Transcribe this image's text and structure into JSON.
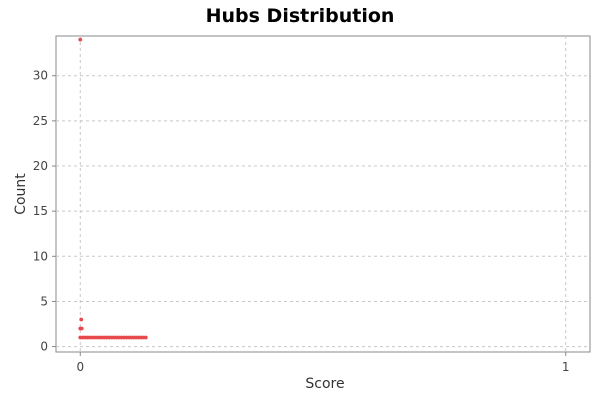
{
  "chart_data": {
    "type": "scatter",
    "title": "Hubs Distribution",
    "xlabel": "Score",
    "ylabel": "Count",
    "xlim": [
      -0.05,
      1.05
    ],
    "ylim": [
      -0.6,
      34.4
    ],
    "x_ticks": [
      0,
      1
    ],
    "y_ticks": [
      0,
      5,
      10,
      15,
      20,
      25,
      30
    ],
    "grid": true,
    "legend": "none",
    "colors": {
      "point": "#e8494c"
    },
    "series": [
      {
        "points": [
          {
            "x": 0.0,
            "y": 34
          },
          {
            "x": 0.002,
            "y": 3
          },
          {
            "x": 0.0,
            "y": 2
          },
          {
            "x": 0.003,
            "y": 2
          },
          {
            "x": 0.0,
            "y": 1
          },
          {
            "x": 0.005,
            "y": 1
          },
          {
            "x": 0.01,
            "y": 1
          },
          {
            "x": 0.015,
            "y": 1
          },
          {
            "x": 0.02,
            "y": 1
          },
          {
            "x": 0.025,
            "y": 1
          },
          {
            "x": 0.03,
            "y": 1
          },
          {
            "x": 0.035,
            "y": 1
          },
          {
            "x": 0.04,
            "y": 1
          },
          {
            "x": 0.045,
            "y": 1
          },
          {
            "x": 0.05,
            "y": 1
          },
          {
            "x": 0.055,
            "y": 1
          },
          {
            "x": 0.06,
            "y": 1
          },
          {
            "x": 0.065,
            "y": 1
          },
          {
            "x": 0.07,
            "y": 1
          },
          {
            "x": 0.075,
            "y": 1
          },
          {
            "x": 0.08,
            "y": 1
          },
          {
            "x": 0.085,
            "y": 1
          },
          {
            "x": 0.09,
            "y": 1
          },
          {
            "x": 0.095,
            "y": 1
          },
          {
            "x": 0.1,
            "y": 1
          },
          {
            "x": 0.105,
            "y": 1
          },
          {
            "x": 0.11,
            "y": 1
          },
          {
            "x": 0.115,
            "y": 1
          },
          {
            "x": 0.12,
            "y": 1
          },
          {
            "x": 0.125,
            "y": 1
          },
          {
            "x": 0.13,
            "y": 1
          },
          {
            "x": 0.135,
            "y": 1
          }
        ]
      }
    ]
  }
}
